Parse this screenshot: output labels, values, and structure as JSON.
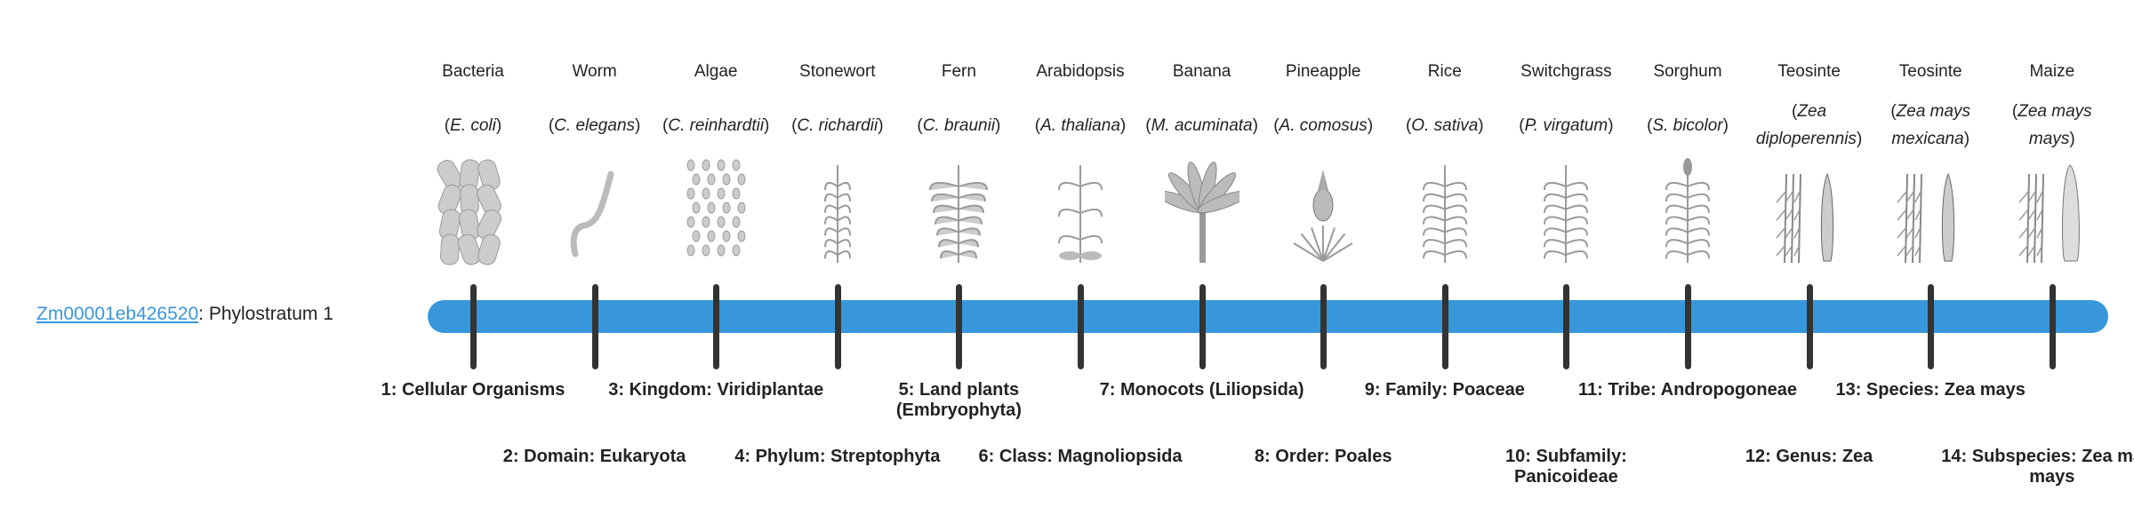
{
  "gene": {
    "id": "Zm00001eb426520",
    "suffix": ": Phylostratum 1"
  },
  "colors": {
    "bar": "#3897db",
    "tick": "#333333",
    "link": "#3a96dd",
    "illustration": "#9a9a9a"
  },
  "strata": [
    {
      "common": "Bacteria",
      "scientific": "E. coli",
      "icon": "bacteria-icon",
      "rank": "1:",
      "taxon": "Cellular Organisms"
    },
    {
      "common": "Worm",
      "scientific": "C. elegans",
      "icon": "worm-icon",
      "rank": "2:",
      "taxon": "Domain: Eukaryota"
    },
    {
      "common": "Algae",
      "scientific": "C. reinhardtii",
      "icon": "algae-icon",
      "rank": "3:",
      "taxon": "Kingdom: Viridiplantae"
    },
    {
      "common": "Stonewort",
      "scientific": "C. richardii",
      "icon": "stonewort-icon",
      "rank": "4:",
      "taxon": "Phylum: Streptophyta"
    },
    {
      "common": "Fern",
      "scientific": "C. braunii",
      "icon": "fern-icon",
      "rank": "5:",
      "taxon": "Land plants (Embryophyta)"
    },
    {
      "common": "Arabidopsis",
      "scientific": "A. thaliana",
      "icon": "arabidopsis-icon",
      "rank": "6:",
      "taxon": "Class: Magnoliopsida"
    },
    {
      "common": "Banana",
      "scientific": "M. acuminata",
      "icon": "banana-icon",
      "rank": "7:",
      "taxon": "Monocots (Liliopsida)"
    },
    {
      "common": "Pineapple",
      "scientific": "A. comosus",
      "icon": "pineapple-icon",
      "rank": "8:",
      "taxon": "Order: Poales"
    },
    {
      "common": "Rice",
      "scientific": "O. sativa",
      "icon": "rice-icon",
      "rank": "9:",
      "taxon": "Family: Poaceae"
    },
    {
      "common": "Switchgrass",
      "scientific": "P. virgatum",
      "icon": "switchgrass-icon",
      "rank": "10:",
      "taxon": "Subfamily: Panicoideae"
    },
    {
      "common": "Sorghum",
      "scientific": "S. bicolor",
      "icon": "sorghum-icon",
      "rank": "11:",
      "taxon": "Tribe: Andropogoneae"
    },
    {
      "common": "Teosinte",
      "scientific": "Zea diploperennis",
      "icon": "teosinte-icon",
      "rank": "12:",
      "taxon": "Genus: Zea"
    },
    {
      "common": "Teosinte",
      "scientific": "Zea mays mexicana",
      "icon": "teosinte-icon",
      "rank": "13:",
      "taxon": "Species: Zea mays"
    },
    {
      "common": "Maize",
      "scientific": "Zea mays mays",
      "icon": "maize-icon",
      "rank": "14:",
      "taxon": "Subspecies: Zea mays mays"
    }
  ]
}
